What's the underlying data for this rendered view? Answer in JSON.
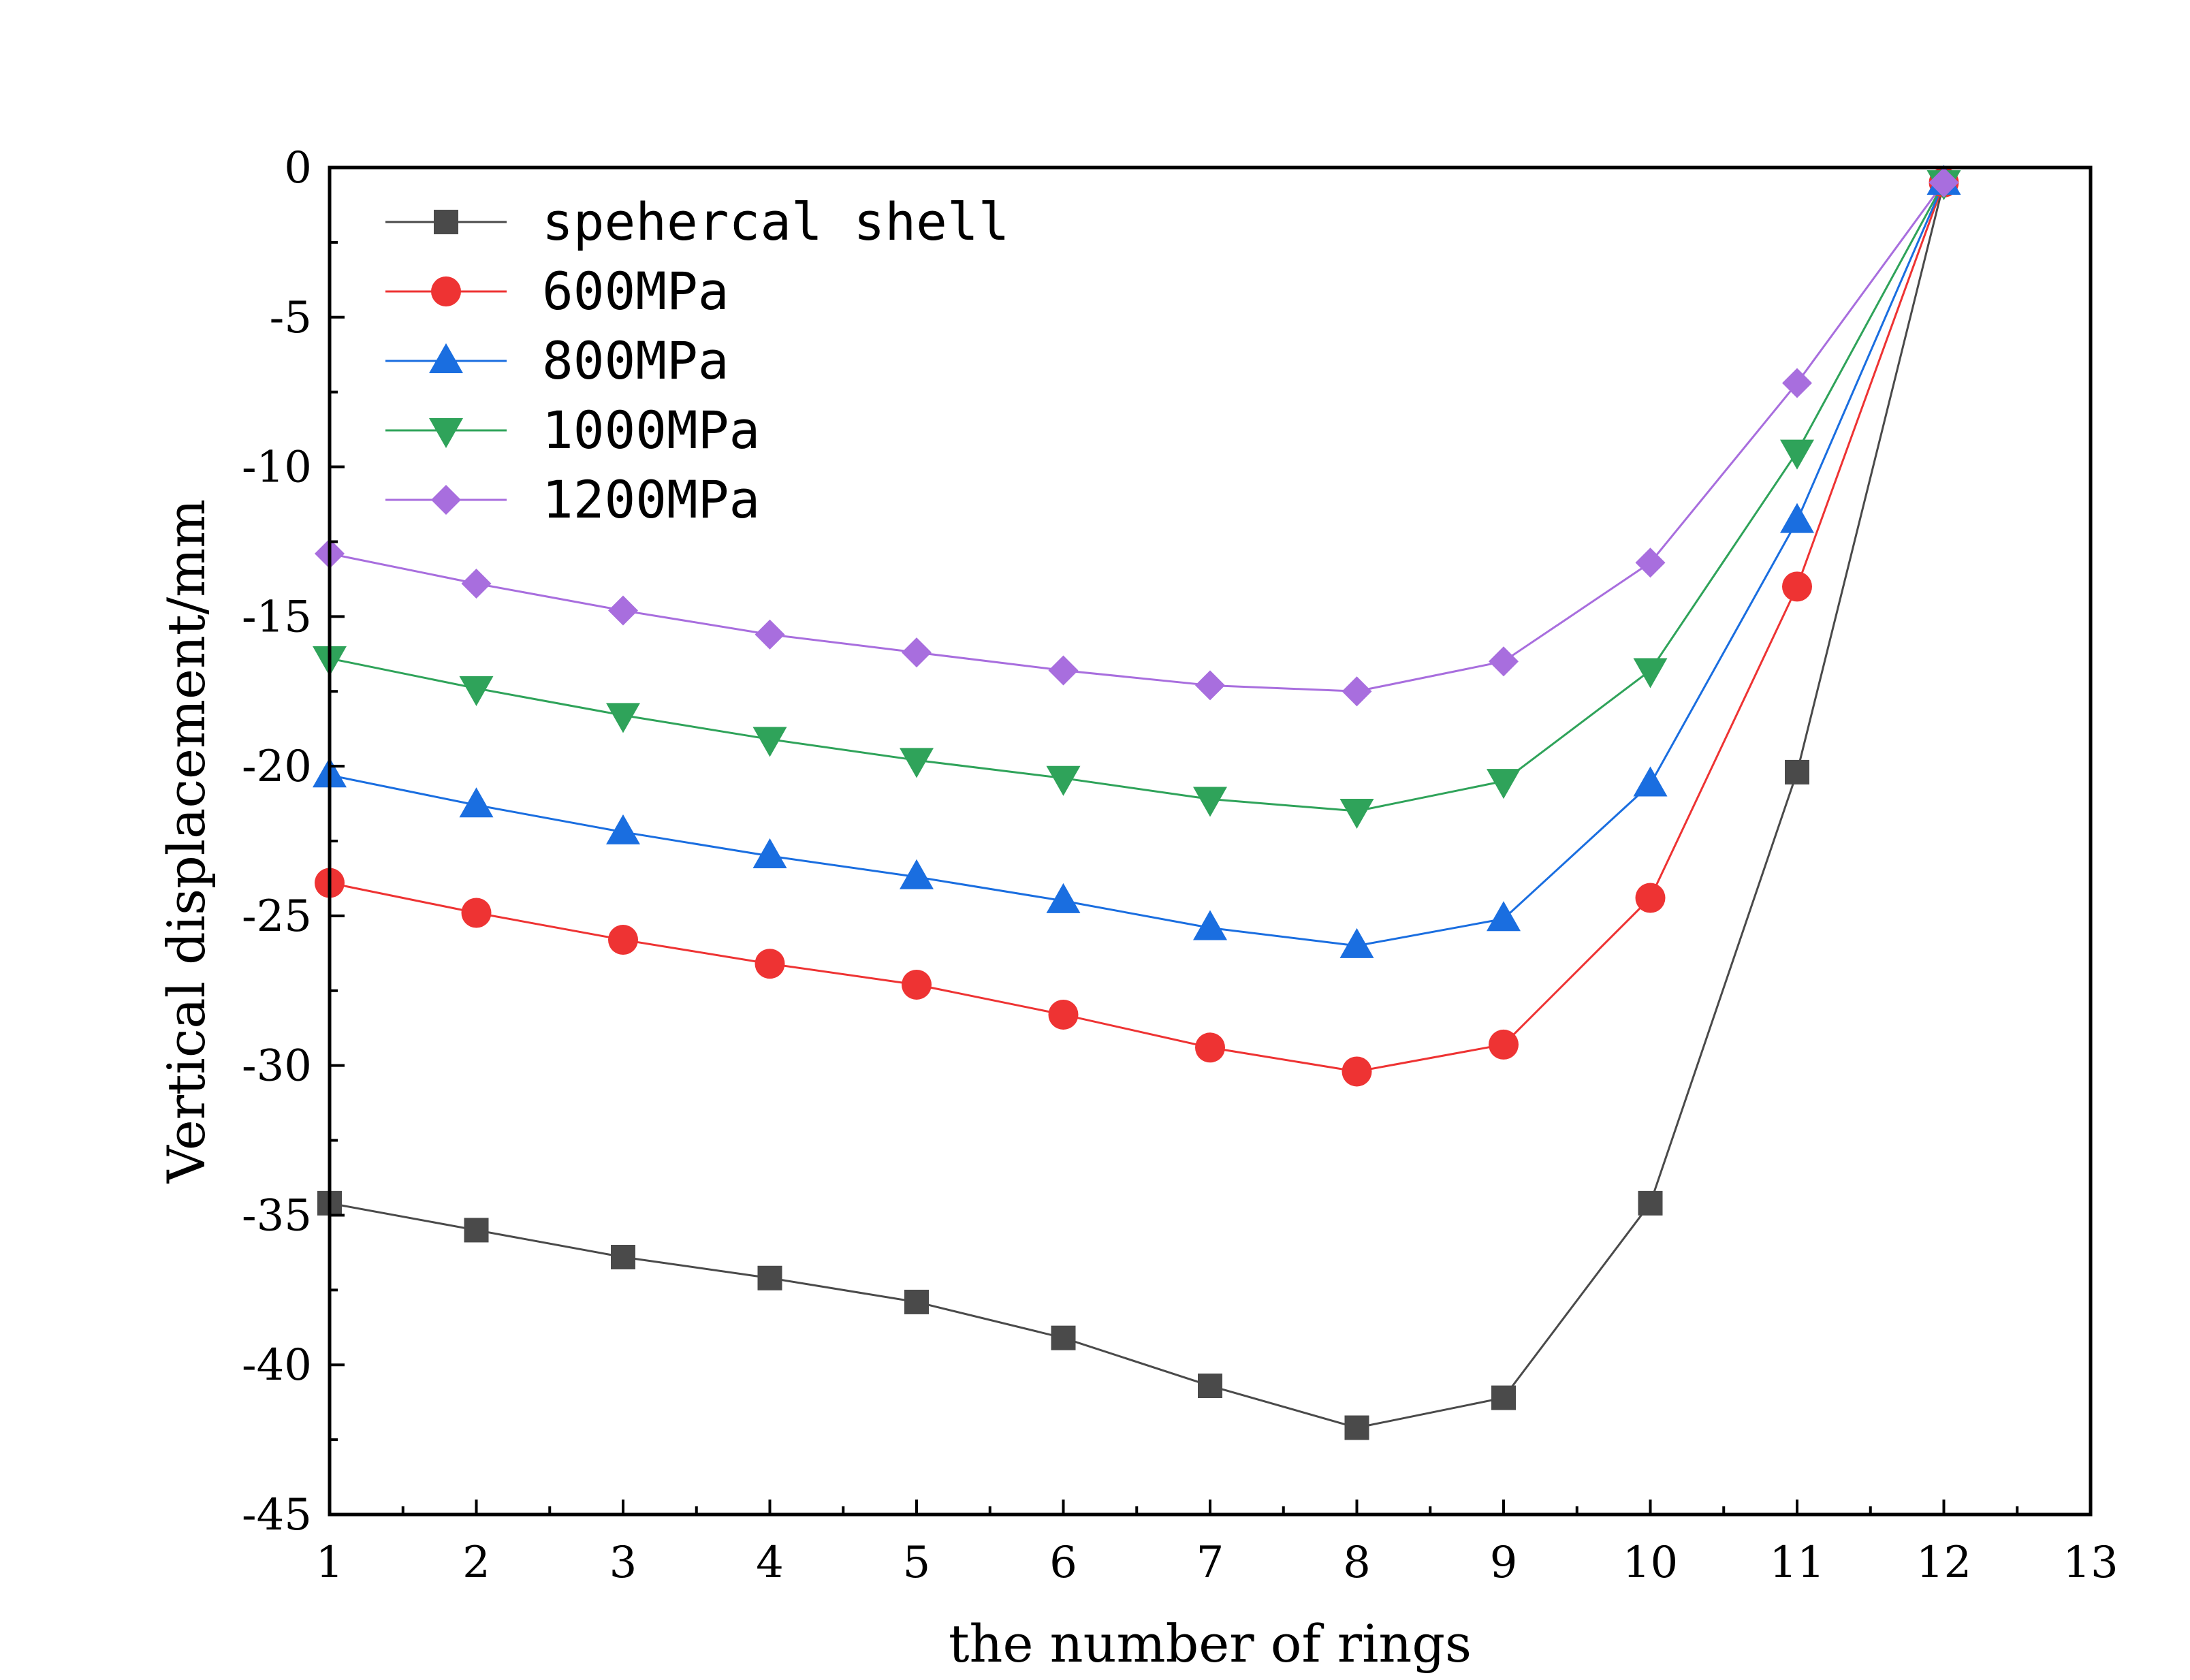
{
  "chart_data": {
    "type": "line",
    "xlabel": "the number of rings",
    "ylabel": "Vertical displacement/mm",
    "xlim": [
      1,
      13
    ],
    "ylim": [
      -45,
      0
    ],
    "x_ticks": [
      1,
      2,
      3,
      4,
      5,
      6,
      7,
      8,
      9,
      10,
      11,
      12,
      13
    ],
    "y_ticks": [
      0,
      -5,
      -10,
      -15,
      -20,
      -25,
      -30,
      -35,
      -40,
      -45
    ],
    "grid": false,
    "legend_position": "top-left",
    "x": [
      1,
      2,
      3,
      4,
      5,
      6,
      7,
      8,
      9,
      10,
      11,
      12
    ],
    "series": [
      {
        "name": "spehercal shell",
        "marker": "square",
        "color": "#4a4a4a",
        "values": [
          -34.6,
          -35.5,
          -36.4,
          -37.1,
          -37.9,
          -39.1,
          -40.7,
          -42.1,
          -41.1,
          -34.6,
          -20.2,
          -0.5
        ]
      },
      {
        "name": "600MPa",
        "marker": "circle",
        "color": "#ee3333",
        "values": [
          -23.9,
          -24.9,
          -25.8,
          -26.6,
          -27.3,
          -28.3,
          -29.4,
          -30.2,
          -29.3,
          -24.4,
          -14.0,
          -0.5
        ]
      },
      {
        "name": "800MPa",
        "marker": "triangle-up",
        "color": "#1a6ee0",
        "values": [
          -20.3,
          -21.3,
          -22.2,
          -23.0,
          -23.7,
          -24.5,
          -25.4,
          -26.0,
          -25.1,
          -20.6,
          -11.8,
          -0.5
        ]
      },
      {
        "name": "1000MPa",
        "marker": "triangle-down",
        "color": "#2fa35a",
        "values": [
          -16.4,
          -17.4,
          -18.3,
          -19.1,
          -19.8,
          -20.4,
          -21.1,
          -21.5,
          -20.5,
          -16.8,
          -9.5,
          -0.5
        ]
      },
      {
        "name": "1200MPa",
        "marker": "diamond",
        "color": "#a86ede",
        "values": [
          -12.9,
          -13.9,
          -14.8,
          -15.6,
          -16.2,
          -16.8,
          -17.3,
          -17.5,
          -16.5,
          -13.2,
          -7.2,
          -0.5
        ]
      }
    ]
  }
}
